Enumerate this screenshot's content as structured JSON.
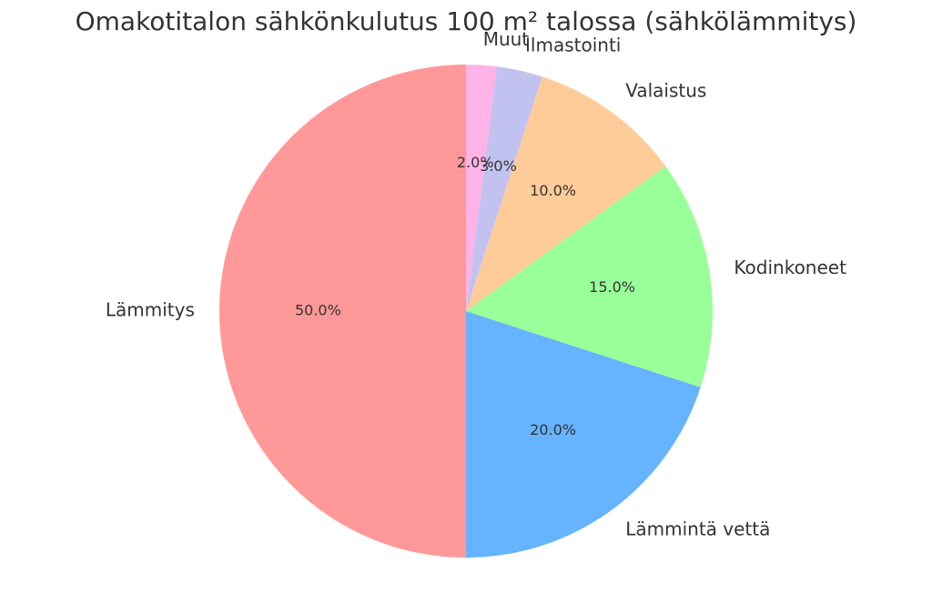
{
  "chart_data": {
    "type": "pie",
    "title": "Omakotitalon sähkönkulutus 100 m² talossa (sähkölämmitys)",
    "categories": [
      "Lämmitys",
      "Lämmintä vettä",
      "Kodinkoneet",
      "Valaistus",
      "Ilmastointi",
      "Muut"
    ],
    "values": [
      50,
      20,
      15,
      10,
      3,
      2
    ],
    "value_labels": [
      "50.0%",
      "20.0%",
      "15.0%",
      "10.0%",
      "3.0%",
      "2.0%"
    ],
    "colors": [
      "#ff9999",
      "#66b3ff",
      "#99ff99",
      "#ffcc99",
      "#c2c2f0",
      "#ffb3e6"
    ]
  }
}
